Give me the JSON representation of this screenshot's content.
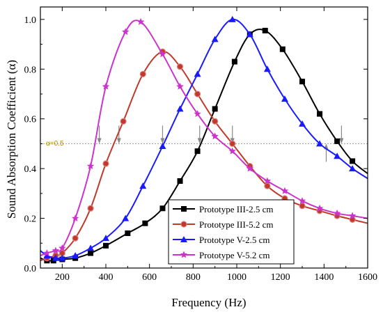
{
  "chart_data": {
    "type": "line",
    "title": "",
    "xlabel": "Frequency (Hz)",
    "ylabel": "Sound Absorption Coefficient (α)",
    "xlim": [
      100,
      1600
    ],
    "ylim": [
      0.0,
      1.05
    ],
    "xticks": [
      200,
      400,
      600,
      800,
      1000,
      1200,
      1400,
      1600
    ],
    "xtick_labels": [
      "200",
      "400",
      "600",
      "800",
      "1000",
      "1200",
      "1400",
      "1600"
    ],
    "yticks": [
      0.0,
      0.2,
      0.4,
      0.6,
      0.8,
      1.0
    ],
    "ytick_labels": [
      "0.0",
      "0.2",
      "0.4",
      "0.6",
      "0.8",
      "1.0"
    ],
    "grid": false,
    "legend_position": "bottom-center",
    "reference_line": {
      "y": 0.5,
      "label": "α=0.5",
      "color": "#b58900"
    },
    "arrows": [
      {
        "x": 370,
        "direction": "down"
      },
      {
        "x": 460,
        "direction": "down"
      },
      {
        "x": 660,
        "direction": "down"
      },
      {
        "x": 830,
        "direction": "down"
      },
      {
        "x": 980,
        "direction": "down"
      },
      {
        "x": 1410,
        "direction": "up"
      },
      {
        "x": 1480,
        "direction": "down"
      }
    ],
    "series": [
      {
        "name": "Prototype III-2.5 cm",
        "color": "#000000",
        "marker": "square",
        "x": [
          100,
          130,
          160,
          200,
          260,
          330,
          400,
          500,
          580,
          660,
          740,
          820,
          900,
          990,
          1060,
          1130,
          1210,
          1300,
          1380,
          1460,
          1530,
          1600
        ],
        "y": [
          0.04,
          0.03,
          0.03,
          0.035,
          0.04,
          0.06,
          0.09,
          0.14,
          0.18,
          0.24,
          0.35,
          0.47,
          0.64,
          0.83,
          0.94,
          0.955,
          0.88,
          0.75,
          0.62,
          0.51,
          0.43,
          0.38
        ]
      },
      {
        "name": "Prototype III-5.2 cm",
        "color": "#c0392b",
        "marker": "circle",
        "x": [
          100,
          130,
          170,
          200,
          260,
          330,
          400,
          480,
          570,
          660,
          740,
          820,
          900,
          980,
          1060,
          1140,
          1220,
          1300,
          1380,
          1460,
          1530,
          1600
        ],
        "y": [
          0.03,
          0.04,
          0.05,
          0.06,
          0.12,
          0.24,
          0.42,
          0.59,
          0.78,
          0.87,
          0.81,
          0.7,
          0.59,
          0.5,
          0.41,
          0.33,
          0.28,
          0.25,
          0.23,
          0.21,
          0.195,
          0.18
        ]
      },
      {
        "name": "Prototype V-2.5 cm",
        "color": "#1a1aff",
        "marker": "triangle",
        "x": [
          100,
          130,
          170,
          200,
          260,
          330,
          400,
          490,
          570,
          660,
          740,
          820,
          900,
          980,
          1060,
          1140,
          1220,
          1300,
          1380,
          1460,
          1530,
          1600
        ],
        "y": [
          0.07,
          0.05,
          0.04,
          0.04,
          0.05,
          0.08,
          0.12,
          0.2,
          0.33,
          0.49,
          0.64,
          0.78,
          0.92,
          1.0,
          0.94,
          0.8,
          0.68,
          0.58,
          0.5,
          0.45,
          0.4,
          0.36
        ]
      },
      {
        "name": "Prototype V-5.2 cm",
        "color": "#cc33cc",
        "marker": "star",
        "x": [
          100,
          130,
          170,
          200,
          260,
          330,
          400,
          490,
          560,
          660,
          740,
          820,
          900,
          980,
          1060,
          1140,
          1220,
          1300,
          1380,
          1460,
          1530,
          1600
        ],
        "y": [
          0.05,
          0.06,
          0.07,
          0.08,
          0.2,
          0.41,
          0.73,
          0.95,
          0.99,
          0.86,
          0.73,
          0.62,
          0.53,
          0.47,
          0.4,
          0.35,
          0.31,
          0.27,
          0.24,
          0.22,
          0.21,
          0.2
        ]
      }
    ]
  }
}
